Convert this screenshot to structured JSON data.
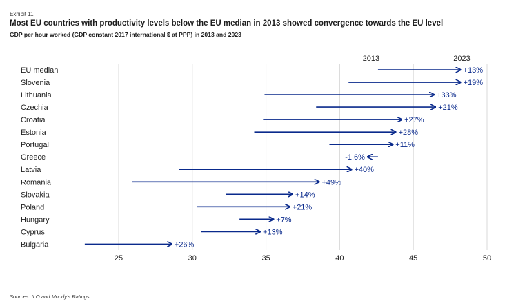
{
  "exhibit": "Exhibit 11",
  "title": "Most EU countries with productivity levels below the EU median in 2013 showed convergence towards the EU level",
  "subtitle": "GDP per hour worked (GDP constant 2017 international $ at PPP) in 2013 and 2023",
  "source": "Sources: ILO and Moody's Ratings",
  "chart_data": {
    "type": "dumbbell",
    "title": "Most EU countries with productivity levels below the EU median in 2013 showed convergence towards the EU level",
    "subtitle": "GDP per hour worked (GDP constant 2017 international $ at PPP) in 2013 and 2023",
    "start_label": "2013",
    "end_label": "2023",
    "x_ticks": [
      25,
      30,
      35,
      40,
      45,
      50
    ],
    "xlim": [
      22,
      50
    ],
    "grid": "vertical",
    "arrow_color": "#0a2a8c",
    "categories": [
      "EU median",
      "Slovenia",
      "Lithuania",
      "Czechia",
      "Croatia",
      "Estonia",
      "Portugal",
      "Greece",
      "Latvia",
      "Romania",
      "Slovakia",
      "Poland",
      "Hungary",
      "Cyprus",
      "Bulgaria"
    ],
    "series": [
      {
        "name": "2013",
        "values": [
          42.6,
          40.6,
          34.9,
          38.4,
          34.8,
          34.2,
          39.3,
          42.6,
          29.1,
          25.9,
          32.3,
          30.3,
          33.2,
          30.6,
          22.7
        ]
      },
      {
        "name": "2023",
        "values": [
          48.2,
          48.2,
          46.4,
          46.5,
          44.2,
          43.8,
          43.6,
          41.9,
          40.8,
          38.6,
          36.8,
          36.6,
          35.5,
          34.6,
          28.6
        ]
      }
    ],
    "change_labels": [
      "+13%",
      "+19%",
      "+33%",
      "+21%",
      "+27%",
      "+28%",
      "+11%",
      "-1.6%",
      "+40%",
      "+49%",
      "+14%",
      "+21%",
      "+7%",
      "+13%",
      "+26%"
    ]
  }
}
